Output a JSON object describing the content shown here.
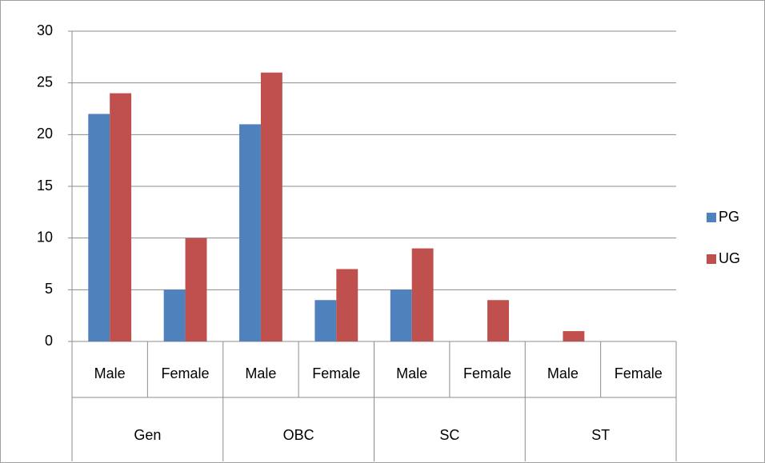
{
  "chart_data": {
    "type": "bar",
    "categories": [
      "Male",
      "Female",
      "Male",
      "Female",
      "Male",
      "Female",
      "Male",
      "Female"
    ],
    "groups": [
      "Gen",
      "OBC",
      "SC",
      "ST"
    ],
    "series": [
      {
        "name": "PG",
        "color": "#4f81bd",
        "values": [
          22,
          5,
          21,
          4,
          5,
          0,
          0,
          0
        ]
      },
      {
        "name": "UG",
        "color": "#c0504d",
        "values": [
          24,
          10,
          26,
          7,
          9,
          4,
          1,
          0
        ]
      }
    ],
    "ylim": [
      0,
      30
    ],
    "yticks": [
      0,
      5,
      10,
      15,
      20,
      25,
      30
    ],
    "grid": true,
    "legend": "right"
  }
}
